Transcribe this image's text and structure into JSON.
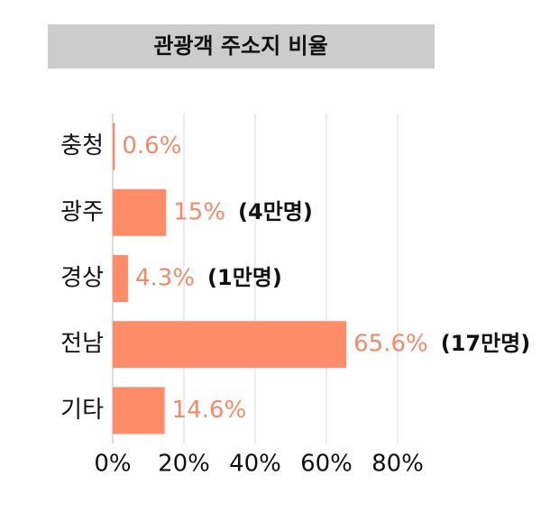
{
  "chart_data": {
    "type": "hbar",
    "title": "관광객 주소지 비율",
    "categories": [
      "충청",
      "광주",
      "경상",
      "전남",
      "기타"
    ],
    "values": [
      0.6,
      15,
      4.3,
      65.6,
      14.6
    ],
    "value_labels": [
      "0.6%",
      "15%",
      "4.3%",
      "65.6%",
      "14.6%"
    ],
    "annotations": [
      null,
      "(4만명)",
      "(1만명)",
      "(17만명)",
      null
    ],
    "color": "#ff8c69",
    "label_color": "#f4896a",
    "xlim": [
      0,
      80
    ],
    "xticks": [
      {
        "value": 0,
        "label": "0%"
      },
      {
        "value": 20,
        "label": "20%"
      },
      {
        "value": 40,
        "label": "40%"
      },
      {
        "value": 60,
        "label": "60%"
      },
      {
        "value": 80,
        "label": "80%"
      }
    ],
    "grid": true
  }
}
